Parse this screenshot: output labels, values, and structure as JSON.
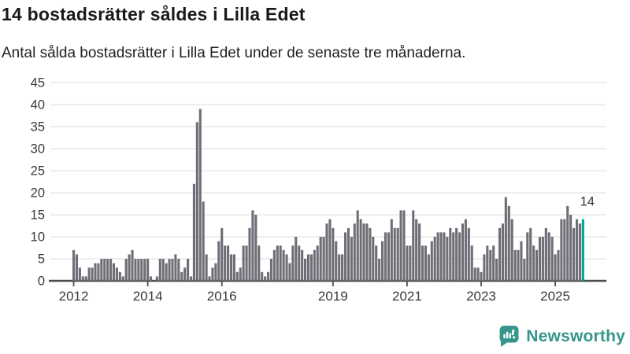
{
  "header": {
    "title": "14 bostadsrätter såldes i Lilla Edet",
    "subtitle": "Antal sålda bostadsrätter i Lilla Edet under de senaste tre månaderna."
  },
  "chart_data": {
    "type": "bar",
    "title": "14 bostadsrätter såldes i Lilla Edet",
    "x_unit": "month",
    "values": [
      7,
      6,
      3,
      1,
      1,
      3,
      3,
      4,
      4,
      5,
      5,
      5,
      5,
      4,
      3,
      2,
      1,
      5,
      6,
      7,
      5,
      5,
      5,
      5,
      5,
      1,
      0,
      1,
      5,
      5,
      4,
      5,
      5,
      6,
      5,
      2,
      3,
      5,
      1,
      22,
      36,
      39,
      18,
      6,
      1,
      3,
      4,
      9,
      12,
      8,
      8,
      6,
      6,
      2,
      3,
      8,
      8,
      12,
      16,
      15,
      8,
      2,
      1,
      2,
      5,
      7,
      8,
      8,
      7,
      6,
      4,
      8,
      10,
      8,
      7,
      5,
      6,
      6,
      7,
      8,
      10,
      10,
      13,
      14,
      12,
      9,
      6,
      6,
      11,
      12,
      10,
      13,
      16,
      14,
      13,
      13,
      12,
      10,
      8,
      5,
      9,
      11,
      11,
      14,
      12,
      12,
      16,
      16,
      8,
      8,
      16,
      14,
      13,
      8,
      8,
      6,
      9,
      10,
      11,
      11,
      11,
      10,
      12,
      11,
      12,
      11,
      13,
      14,
      12,
      8,
      3,
      3,
      2,
      6,
      8,
      7,
      8,
      5,
      12,
      13,
      19,
      17,
      14,
      7,
      7,
      9,
      5,
      11,
      12,
      8,
      7,
      10,
      10,
      12,
      11,
      10,
      6,
      7,
      14,
      14,
      17,
      15,
      12,
      14,
      13,
      14
    ],
    "highlight_index": 165,
    "highlight_label": "14",
    "ylim": [
      0,
      45
    ],
    "yticks": [
      0,
      5,
      10,
      15,
      20,
      25,
      30,
      35,
      40,
      45
    ],
    "xticks": [
      {
        "label": "2012",
        "month_index": 0
      },
      {
        "label": "2014",
        "month_index": 24
      },
      {
        "label": "2016",
        "month_index": 48
      },
      {
        "label": "2019",
        "month_index": 84
      },
      {
        "label": "2021",
        "month_index": 108
      },
      {
        "label": "2023",
        "month_index": 132
      },
      {
        "label": "2025",
        "month_index": 156
      }
    ],
    "grid": true,
    "legend": "none",
    "bar_color": "#6e6e76",
    "highlight_color": "#00a3a3",
    "grid_color": "#e4e4e4",
    "axis_color": "#4d4d4d",
    "label_color": "#3a3a3a"
  },
  "footer": {
    "brand": "Newsworthy",
    "brand_color": "#35968b"
  }
}
